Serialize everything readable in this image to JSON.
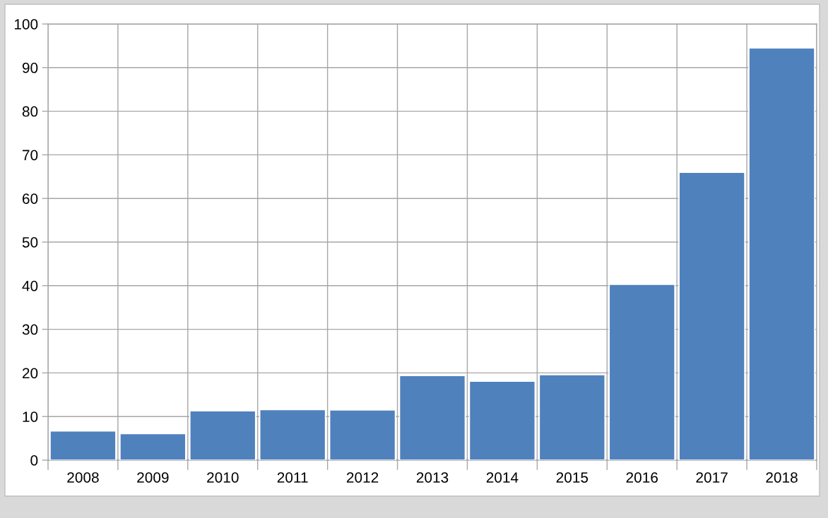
{
  "chart_data": {
    "type": "bar",
    "categories": [
      "2008",
      "2009",
      "2010",
      "2011",
      "2012",
      "2013",
      "2014",
      "2015",
      "2016",
      "2017",
      "2018"
    ],
    "values": [
      6.7,
      6.1,
      11.3,
      11.6,
      11.5,
      19.4,
      18.1,
      19.6,
      40.3,
      66.0,
      94.5
    ],
    "color": "#4f81bd",
    "ylim": [
      0,
      100
    ],
    "yticks": [
      0,
      10,
      20,
      30,
      40,
      50,
      60,
      70,
      80,
      90,
      100
    ],
    "grid": true
  }
}
